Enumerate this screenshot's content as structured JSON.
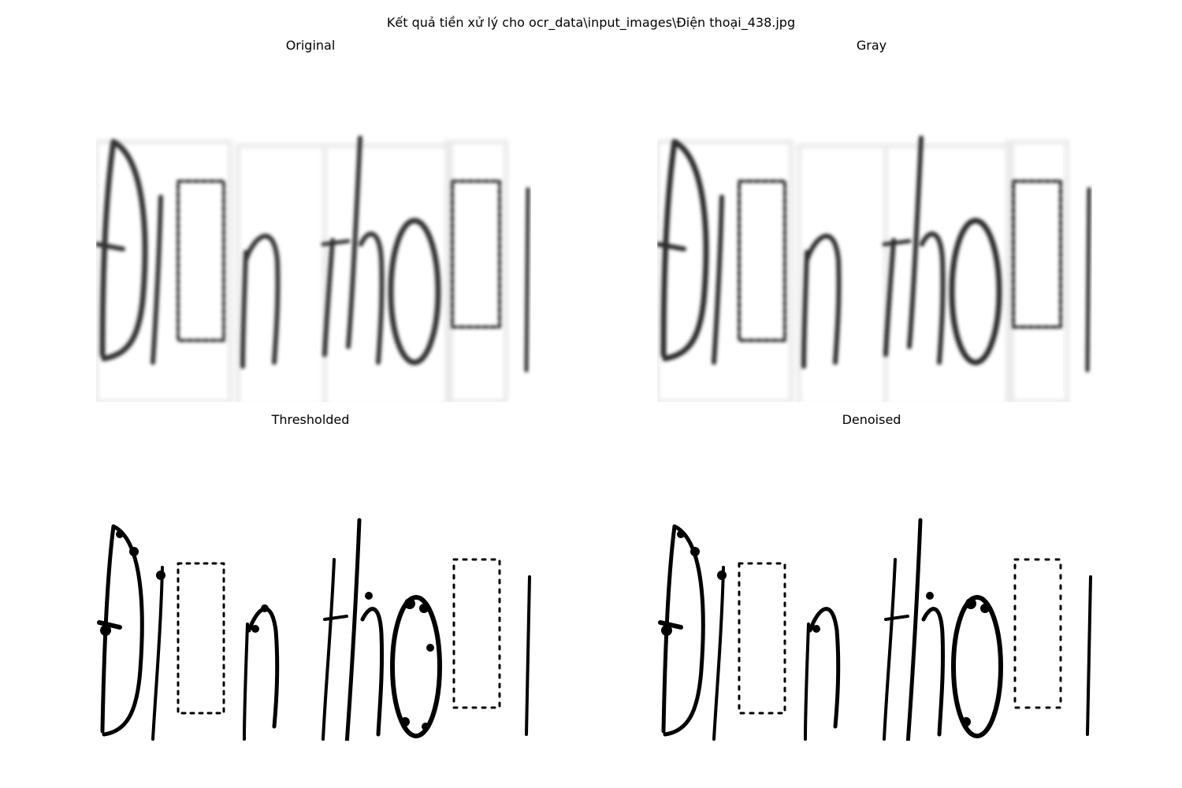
{
  "figure": {
    "suptitle": "Kết quả tiền xử lý cho ocr_data\\input_images\\Điện thoại_438.jpg",
    "panels": [
      {
        "title": "Original",
        "style": "blurred-gray",
        "ink_color": "#333333"
      },
      {
        "title": "Gray",
        "style": "blurred-gray",
        "ink_color": "#2a2a2a"
      },
      {
        "title": "Thresholded",
        "style": "binary",
        "ink_color": "#000000"
      },
      {
        "title": "Denoised",
        "style": "binary",
        "ink_color": "#000000"
      }
    ]
  }
}
